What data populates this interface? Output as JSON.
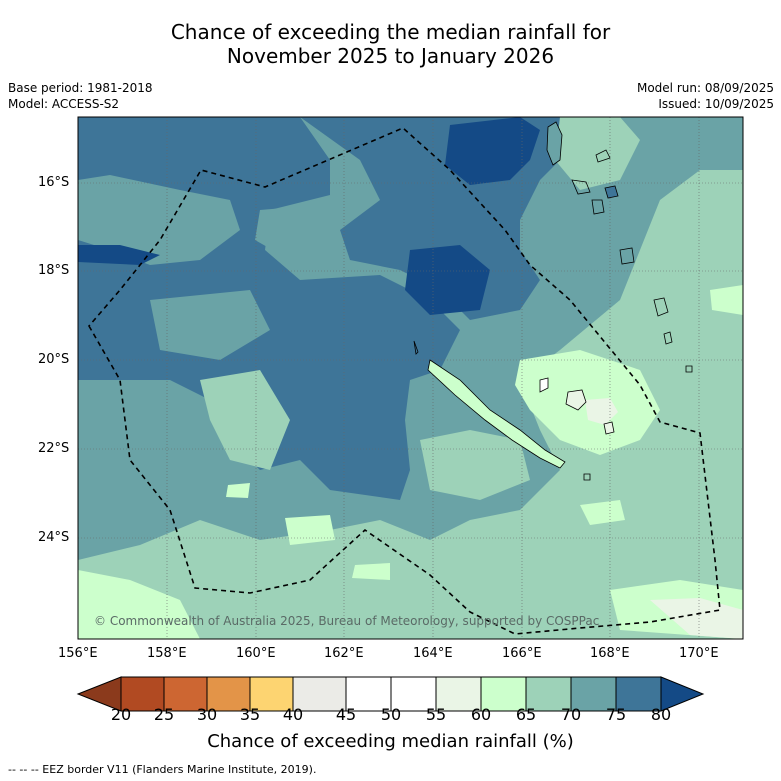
{
  "header": {
    "title_line1": "Chance of exceeding the median rainfall for",
    "title_line2": "November 2025 to January 2026",
    "base_period": "Base period: 1981-2018",
    "model": "Model: ACCESS-S2",
    "model_run": "Model run: 08/09/2025",
    "issued": "Issued: 10/09/2025"
  },
  "map": {
    "lat_labels": [
      "16°S",
      "18°S",
      "20°S",
      "22°S",
      "24°S"
    ],
    "lon_labels": [
      "156°E",
      "158°E",
      "160°E",
      "162°E",
      "164°E",
      "166°E",
      "168°E",
      "170°E"
    ],
    "copyright": "© Commonwealth of Australia 2025, Bureau of Meteorology, supported by COSPPac"
  },
  "colorbar": {
    "ticks": [
      "20",
      "25",
      "30",
      "35",
      "40",
      "45",
      "50",
      "55",
      "60",
      "65",
      "70",
      "75",
      "80"
    ],
    "colors": {
      "lt20": "#8b3a1c",
      "20_25": "#b14a22",
      "25_30": "#cd6632",
      "30_35": "#e39448",
      "35_40": "#fdd471",
      "40_45": "#ebebe7",
      "45_50": "#ffffff",
      "50_55": "#ffffff",
      "55_60": "#eaf5e6",
      "60_65": "#ccffcc",
      "65_70": "#9dd2b8",
      "70_75": "#6aa3a6",
      "75_80": "#3e7598",
      "gt80": "#144a86"
    },
    "label": "Chance of exceeding median rainfall (%)"
  },
  "footer": {
    "eez_note": "--  --  -- EEZ border V11 (Flanders Marine Institute, 2019)."
  }
}
